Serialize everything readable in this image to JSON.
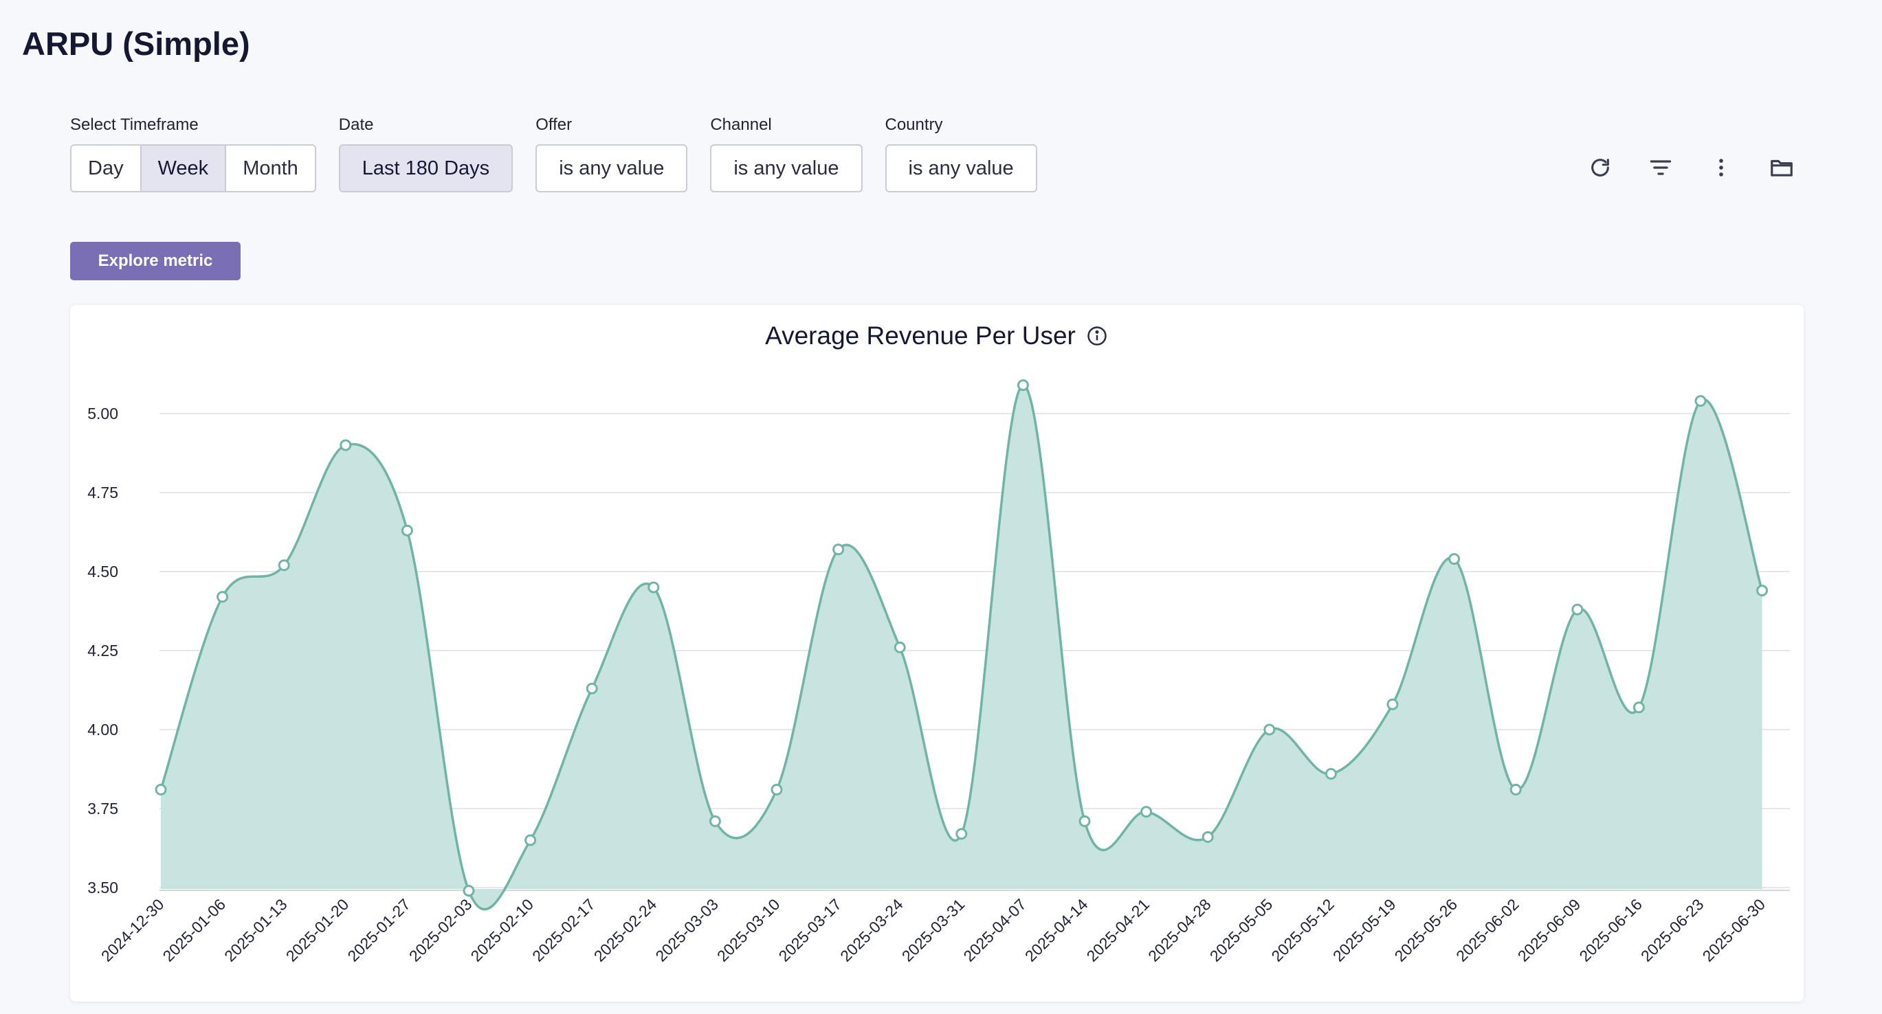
{
  "page": {
    "title": "ARPU (Simple)"
  },
  "filters": {
    "timeframe": {
      "label": "Select Timeframe",
      "options": [
        "Day",
        "Week",
        "Month"
      ],
      "selected": "Week"
    },
    "date": {
      "label": "Date",
      "value": "Last 180 Days"
    },
    "offer": {
      "label": "Offer",
      "value": "is any value"
    },
    "channel": {
      "label": "Channel",
      "value": "is any value"
    },
    "country": {
      "label": "Country",
      "value": "is any value"
    }
  },
  "toolbar": {
    "icons": [
      "refresh-icon",
      "filter-icon",
      "more-vertical-icon",
      "folder-icon"
    ]
  },
  "explore_label": "Explore metric",
  "colors": {
    "line": "#6fb5a5",
    "fill": "#c5e3de",
    "accent": "#7a6fb5"
  },
  "chart_data": {
    "type": "area",
    "title": "Average Revenue Per User",
    "xlabel": "",
    "ylabel": "",
    "ylim": [
      3.5,
      5.15
    ],
    "yticks": [
      "3.50",
      "3.75",
      "4.00",
      "4.25",
      "4.50",
      "4.75",
      "5.00"
    ],
    "grid": true,
    "x": [
      "2024-12-30",
      "2025-01-06",
      "2025-01-13",
      "2025-01-20",
      "2025-01-27",
      "2025-02-03",
      "2025-02-10",
      "2025-02-17",
      "2025-02-24",
      "2025-03-03",
      "2025-03-10",
      "2025-03-17",
      "2025-03-24",
      "2025-03-31",
      "2025-04-07",
      "2025-04-14",
      "2025-04-21",
      "2025-04-28",
      "2025-05-05",
      "2025-05-12",
      "2025-05-19",
      "2025-05-26",
      "2025-06-02",
      "2025-06-09",
      "2025-06-16",
      "2025-06-23",
      "2025-06-30"
    ],
    "values": [
      3.81,
      4.42,
      4.52,
      4.9,
      4.63,
      3.49,
      3.65,
      4.13,
      4.45,
      3.71,
      3.81,
      4.57,
      4.26,
      3.67,
      5.09,
      3.71,
      3.74,
      3.66,
      4.0,
      3.86,
      4.08,
      4.54,
      3.81,
      4.38,
      4.07,
      5.04,
      4.44
    ]
  }
}
